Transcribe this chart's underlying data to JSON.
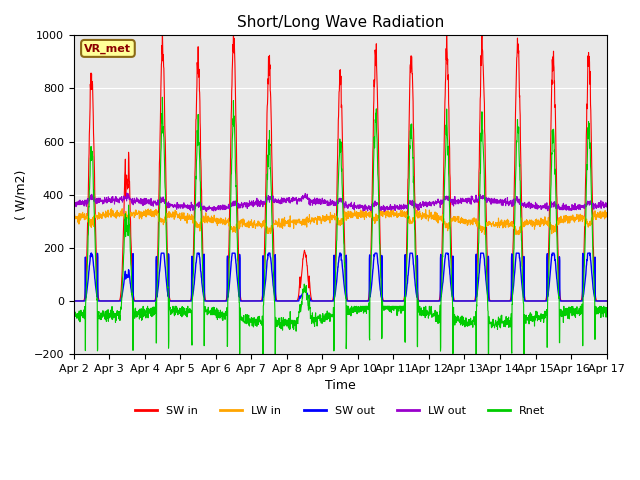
{
  "title": "Short/Long Wave Radiation",
  "xlabel": "Time",
  "ylabel": "( W/m2)",
  "ylim": [
    -200,
    1000
  ],
  "x_tick_labels": [
    "Apr 2",
    "Apr 3",
    "Apr 4",
    "Apr 5",
    "Apr 6",
    "Apr 7",
    "Apr 8",
    "Apr 9",
    "Apr 10",
    "Apr 11",
    "Apr 12",
    "Apr 13",
    "Apr 14",
    "Apr 15",
    "Apr 16",
    "Apr 17"
  ],
  "colors": {
    "SW_in": "#ff0000",
    "LW_in": "#ffa500",
    "SW_out": "#0000ff",
    "LW_out": "#9900cc",
    "Rnet": "#00cc00"
  },
  "legend_labels": [
    "SW in",
    "LW in",
    "SW out",
    "LW out",
    "Rnet"
  ],
  "annotation_text": "VR_met",
  "background_color": "#e8e8e8",
  "grid_color": "#ffffff",
  "title_fontsize": 11,
  "label_fontsize": 9,
  "tick_fontsize": 8
}
